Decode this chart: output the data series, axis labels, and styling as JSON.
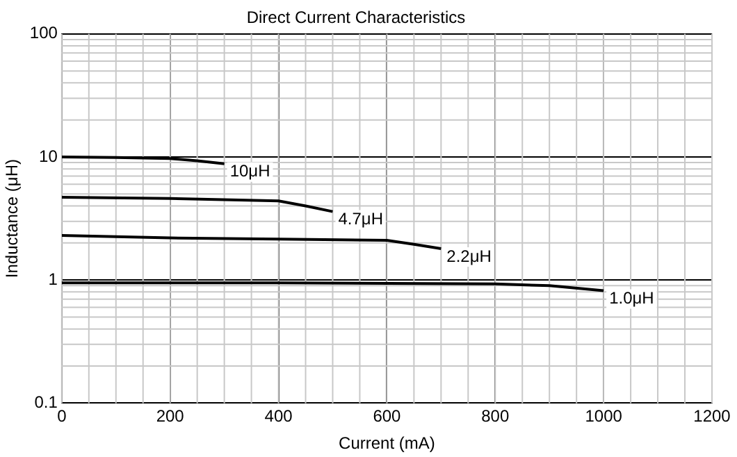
{
  "chart_data": {
    "type": "line",
    "title": "Direct Current Characteristics",
    "xlabel": "Current (mA)",
    "ylabel": "Inductance (μH)",
    "series": [
      {
        "x": [
          0,
          100,
          200,
          250,
          300
        ],
        "values": [
          10,
          9.9,
          9.7,
          9.3,
          8.8
        ],
        "color": "#000000"
      },
      {
        "x": [
          0,
          200,
          400,
          450,
          500
        ],
        "values": [
          4.7,
          4.6,
          4.4,
          4,
          3.6
        ],
        "color": "#000000"
      },
      {
        "x": [
          0,
          200,
          400,
          600,
          650,
          700
        ],
        "values": [
          2.3,
          2.2,
          2.15,
          2.1,
          1.95,
          1.8
        ],
        "color": "#000000"
      },
      {
        "x": [
          0,
          400,
          800,
          900,
          1000
        ],
        "values": [
          0.95,
          0.95,
          0.93,
          0.9,
          0.82
        ],
        "color": "#000000"
      }
    ],
    "annotations": [
      {
        "text": "10μH",
        "x": 300,
        "y": 8.8
      },
      {
        "text": "4.7μH",
        "x": 500,
        "y": 3.6
      },
      {
        "text": "2.2μH",
        "x": 700,
        "y": 1.8
      },
      {
        "text": "1.0μH",
        "x": 1000,
        "y": 0.82
      }
    ],
    "xlim": [
      0,
      1200
    ],
    "xticks": [
      0,
      200,
      400,
      600,
      800,
      1000,
      1200
    ],
    "ylim": [
      0.1,
      100
    ],
    "yticks": [
      0.1,
      1,
      10,
      100
    ],
    "log": "y",
    "grid": true,
    "legend": false,
    "marker": "none",
    "line_style": "solid"
  }
}
